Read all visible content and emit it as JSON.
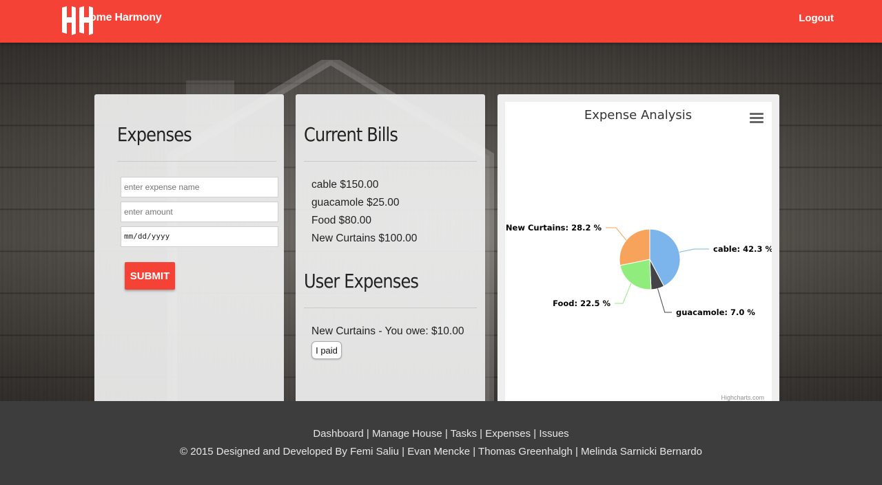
{
  "navbar": {
    "brand_text": "ome Harmony",
    "logout_label": "Logout",
    "color": "#f44336"
  },
  "expenses_card": {
    "title": "Expenses",
    "name_placeholder": "enter expense name",
    "amount_placeholder": "enter amount",
    "date_placeholder": "mm/dd/yyyy",
    "submit_label": "SUBMIT"
  },
  "bills_card": {
    "title": "Current Bills",
    "bills": [
      "cable $150.00",
      "guacamole $25.00",
      "Food $80.00",
      "New Curtains $100.00"
    ],
    "user_expenses_title": "User Expenses",
    "owe_text": "New Curtains - You owe: $10.00",
    "paid_label": "I paid"
  },
  "chart_card": {
    "credits": "Highcharts.com"
  },
  "chart_data": {
    "type": "pie",
    "title": "Expense Analysis",
    "slices": [
      {
        "name": "cable",
        "value": 42.3,
        "label": "cable: 42.3 %",
        "color": "#7cb5ec"
      },
      {
        "name": "guacamole",
        "value": 7.0,
        "label": "guacamole: 7.0 %",
        "color": "#434348"
      },
      {
        "name": "Food",
        "value": 22.5,
        "label": "Food: 22.5 %",
        "color": "#90ed7d"
      },
      {
        "name": "New Curtains",
        "value": 28.2,
        "label": "New Curtains: 28.2 %",
        "color": "#f7a35c"
      }
    ]
  },
  "footer": {
    "links": [
      "Dashboard",
      "Manage House",
      "Tasks",
      "Expenses",
      "Issues"
    ],
    "credit_prefix": "© 2015 Designed and Developed By",
    "authors": [
      "Femi Saliu",
      "Evan Mencke",
      "Thomas Greenhalgh",
      "Melinda Sarnicki Bernardo"
    ]
  }
}
